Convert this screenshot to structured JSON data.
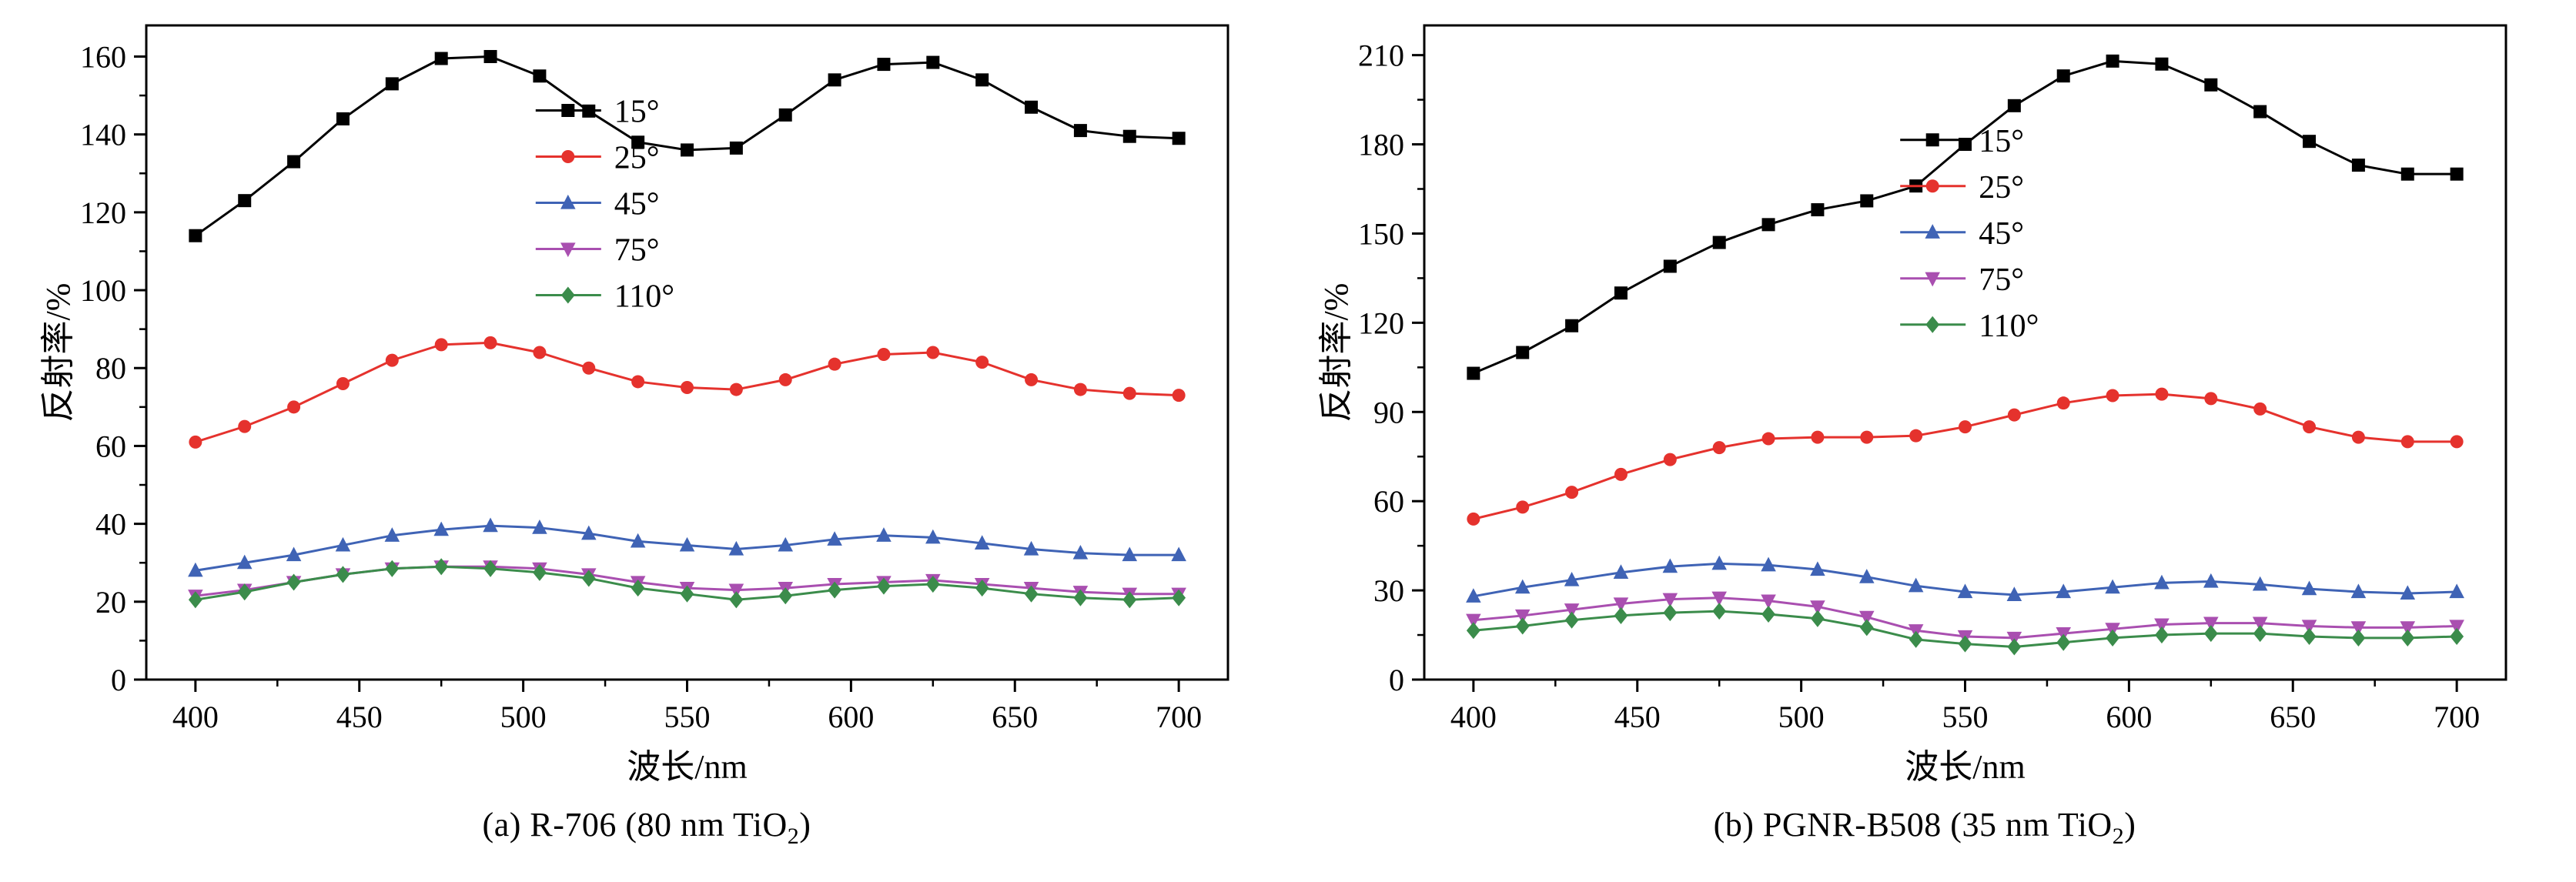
{
  "page": {
    "background": "#ffffff"
  },
  "chart_data": [
    {
      "id": "a",
      "type": "line",
      "caption": "(a) R-706 (80 nm TiO2)",
      "caption_parts": {
        "pre": "(a) R-706 (80 nm TiO",
        "sub": "2",
        "post": ")"
      },
      "xlabel": "波长/nm",
      "ylabel": "反射率/%",
      "xlim": [
        385,
        715
      ],
      "ylim": [
        0,
        168
      ],
      "xticks": [
        400,
        450,
        500,
        550,
        600,
        650,
        700
      ],
      "xminor": [
        425,
        475,
        525,
        575,
        625,
        675
      ],
      "yticks": [
        0,
        20,
        40,
        60,
        80,
        100,
        120,
        140,
        160
      ],
      "yminor": [
        10,
        30,
        50,
        70,
        90,
        110,
        130,
        150
      ],
      "grid": false,
      "legend": {
        "position": "inside-upper-left",
        "fx": 0.36,
        "fy": 0.13
      },
      "x": [
        400,
        415,
        430,
        445,
        460,
        475,
        490,
        505,
        520,
        535,
        550,
        565,
        580,
        595,
        610,
        625,
        640,
        655,
        670,
        685,
        700
      ],
      "series": [
        {
          "name": "15°",
          "color": "#000000",
          "marker": "square",
          "values": [
            114,
            123,
            133,
            144,
            153,
            159.5,
            160,
            155,
            146,
            138,
            136,
            136.5,
            145,
            154,
            158,
            158.5,
            154,
            147,
            141,
            139.5,
            139
          ]
        },
        {
          "name": "25°",
          "color": "#e5322d",
          "marker": "circle",
          "values": [
            61,
            65,
            70,
            76,
            82,
            86,
            86.5,
            84,
            80,
            76.5,
            75,
            74.5,
            77,
            81,
            83.5,
            84,
            81.5,
            77,
            74.5,
            73.5,
            73
          ]
        },
        {
          "name": "45°",
          "color": "#3f63b5",
          "marker": "triangle-up",
          "values": [
            28,
            30,
            32,
            34.5,
            37,
            38.5,
            39.5,
            39,
            37.5,
            35.5,
            34.5,
            33.5,
            34.5,
            36,
            37,
            36.5,
            35,
            33.5,
            32.5,
            32,
            32
          ]
        },
        {
          "name": "75°",
          "color": "#a94fb0",
          "marker": "triangle-down",
          "values": [
            21.5,
            23,
            25,
            27,
            28.5,
            29,
            29,
            28.5,
            27,
            25,
            23.5,
            23,
            23.5,
            24.5,
            25,
            25.5,
            24.5,
            23.5,
            22.5,
            22,
            22
          ]
        },
        {
          "name": "110°",
          "color": "#3b8c4b",
          "marker": "diamond",
          "values": [
            20.5,
            22.5,
            25,
            27,
            28.5,
            29,
            28.5,
            27.5,
            26,
            23.5,
            22,
            20.5,
            21.5,
            23,
            24,
            24.5,
            23.5,
            22,
            21,
            20.5,
            21
          ]
        }
      ]
    },
    {
      "id": "b",
      "type": "line",
      "caption": "(b) PGNR-B508 (35 nm TiO2)",
      "caption_parts": {
        "pre": "(b) PGNR-B508 (35 nm TiO",
        "sub": "2",
        "post": ")"
      },
      "xlabel": "波长/nm",
      "ylabel": "反射率/%",
      "xlim": [
        385,
        715
      ],
      "ylim": [
        0,
        220
      ],
      "xticks": [
        400,
        450,
        500,
        550,
        600,
        650,
        700
      ],
      "xminor": [
        425,
        475,
        525,
        575,
        625,
        675
      ],
      "yticks": [
        0,
        30,
        60,
        90,
        120,
        150,
        180,
        210
      ],
      "yminor": [
        15,
        45,
        75,
        105,
        135,
        165,
        195
      ],
      "grid": false,
      "legend": {
        "position": "inside-upper-middle",
        "fx": 0.44,
        "fy": 0.175
      },
      "x": [
        400,
        415,
        430,
        445,
        460,
        475,
        490,
        505,
        520,
        535,
        550,
        565,
        580,
        595,
        610,
        625,
        640,
        655,
        670,
        685,
        700
      ],
      "series": [
        {
          "name": "15°",
          "color": "#000000",
          "marker": "square",
          "values": [
            103,
            110,
            119,
            130,
            139,
            147,
            153,
            158,
            161,
            166,
            180,
            193,
            203,
            208,
            207,
            200,
            191,
            181,
            173,
            170,
            170
          ]
        },
        {
          "name": "25°",
          "color": "#e5322d",
          "marker": "circle",
          "values": [
            54,
            58,
            63,
            69,
            74,
            78,
            81,
            81.5,
            81.5,
            82,
            85,
            89,
            93,
            95.5,
            96,
            94.5,
            91,
            85,
            81.5,
            80,
            80
          ]
        },
        {
          "name": "45°",
          "color": "#3f63b5",
          "marker": "triangle-up",
          "values": [
            28,
            31,
            33.5,
            36,
            38,
            39,
            38.5,
            37,
            34.5,
            31.5,
            29.5,
            28.5,
            29.5,
            31,
            32.5,
            33,
            32,
            30.5,
            29.5,
            29,
            29.5
          ]
        },
        {
          "name": "75°",
          "color": "#a94fb0",
          "marker": "triangle-down",
          "values": [
            20,
            21.5,
            23.5,
            25.5,
            27,
            27.5,
            26.5,
            24.5,
            21,
            16.5,
            14.5,
            14,
            15.5,
            17,
            18.5,
            19,
            19,
            18,
            17.5,
            17.5,
            18
          ]
        },
        {
          "name": "110°",
          "color": "#3b8c4b",
          "marker": "diamond",
          "values": [
            16.5,
            18,
            20,
            21.5,
            22.5,
            23,
            22,
            20.5,
            17.5,
            13.5,
            12,
            11,
            12.5,
            14,
            15,
            15.5,
            15.5,
            14.5,
            14,
            14,
            14.5
          ]
        }
      ]
    }
  ]
}
